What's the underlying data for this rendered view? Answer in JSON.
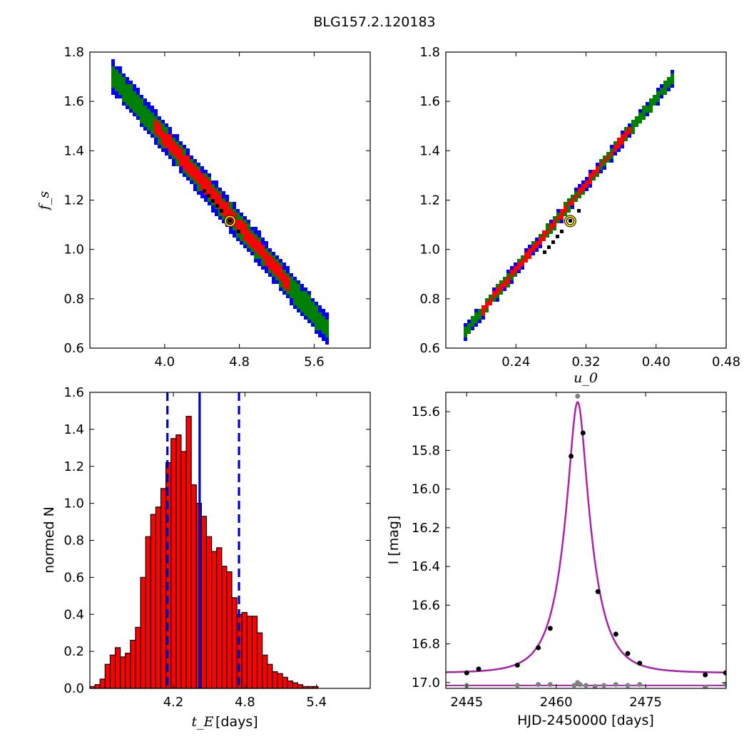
{
  "title": "BLG157.2.120183",
  "colors": {
    "sigma3": "#0000ff",
    "sigma2": "#008000",
    "sigma1": "#ff0000",
    "best_cells": "#000000",
    "marker_edge": "#ffd700",
    "hist_fill": "#ff0000",
    "hist_lines": "#0000cc",
    "model_curve": "#aa22aa",
    "data_black": "#000000",
    "data_grey": "#808080"
  },
  "chart_data": [
    {
      "id": "tE-fs",
      "type": "heatmap",
      "xlabel": "",
      "ylabel": "f_s",
      "xlim": [
        3.2,
        6.2
      ],
      "ylim": [
        0.6,
        1.8
      ],
      "xticks": [
        "4.0",
        "4.8",
        "5.6"
      ],
      "yticks": [
        "0.6",
        "0.8",
        "1.0",
        "1.2",
        "1.4",
        "1.6",
        "1.8"
      ],
      "confidence_band": {
        "x_start": 3.45,
        "y_start": 1.7,
        "x_end": 5.75,
        "y_end": 0.67,
        "levels": [
          {
            "name": "3-sigma",
            "color": "#0000ff",
            "half_width_fs": 0.065
          },
          {
            "name": "2-sigma",
            "color": "#008000",
            "half_width_fs": 0.045
          },
          {
            "name": "1-sigma",
            "color": "#ff0000",
            "half_width_fs": 0.03,
            "x_from": 3.9,
            "x_to": 5.35
          }
        ]
      },
      "best_fit": {
        "x": 4.7,
        "y": 1.115
      }
    },
    {
      "id": "u0-fs",
      "type": "heatmap",
      "xlabel": "u_0",
      "ylabel": "",
      "xlim": [
        0.16,
        0.48
      ],
      "ylim": [
        0.6,
        1.8
      ],
      "xticks": [
        "0.24",
        "0.32",
        "0.40",
        "0.48"
      ],
      "yticks": [
        "0.6",
        "0.8",
        "1.0",
        "1.2",
        "1.4",
        "1.6",
        "1.8"
      ],
      "confidence_band": {
        "x_start": 0.183,
        "y_start": 0.67,
        "x_end": 0.42,
        "y_end": 1.7,
        "levels": [
          {
            "name": "3-sigma",
            "color": "#0000ff",
            "half_width_fs": 0.03
          },
          {
            "name": "2-sigma",
            "color": "#008000",
            "half_width_fs": 0.022
          },
          {
            "name": "1-sigma",
            "color": "#ff0000",
            "half_width_fs": 0.014,
            "x_from": 0.2,
            "x_to": 0.37
          }
        ]
      },
      "best_fit": {
        "x": 0.302,
        "y": 1.115
      }
    },
    {
      "id": "tE-hist",
      "type": "bar",
      "xlabel": "t_E",
      "xlabel_suffix": "[days]",
      "ylabel": "normed N",
      "xlim": [
        3.5,
        5.85
      ],
      "ylim": [
        0.0,
        1.6
      ],
      "xticks": [
        "4.2",
        "4.8",
        "5.4"
      ],
      "yticks": [
        "0.0",
        "0.2",
        "0.4",
        "0.6",
        "0.8",
        "1.0",
        "1.2",
        "1.4",
        "1.6"
      ],
      "bin_start": 3.5,
      "bin_width": 0.0425,
      "values": [
        0.01,
        0.02,
        0.05,
        0.13,
        0.18,
        0.22,
        0.17,
        0.19,
        0.26,
        0.33,
        0.6,
        0.82,
        0.94,
        0.98,
        1.08,
        1.22,
        1.35,
        1.37,
        1.28,
        1.47,
        1.1,
        1.0,
        0.93,
        0.82,
        0.74,
        0.76,
        0.66,
        0.63,
        0.49,
        0.4,
        0.41,
        0.39,
        0.39,
        0.3,
        0.18,
        0.13,
        0.09,
        0.08,
        0.06,
        0.04,
        0.03,
        0.02,
        0.01,
        0.01,
        0.01
      ],
      "vlines": [
        {
          "x": 4.15,
          "style": "dashed"
        },
        {
          "x": 4.42,
          "style": "solid"
        },
        {
          "x": 4.75,
          "style": "dashed"
        }
      ]
    },
    {
      "id": "lightcurve",
      "type": "scatter",
      "xlabel": "HJD-2450000 [days]",
      "ylabel": "I [mag]",
      "xlim": [
        2441.5,
        2488.5
      ],
      "ylim": [
        17.03,
        15.5
      ],
      "y_inverted": true,
      "xticks": [
        "2445",
        "2460",
        "2475"
      ],
      "yticks": [
        "15.6",
        "15.8",
        "16.0",
        "16.2",
        "16.4",
        "16.6",
        "16.8",
        "17.0"
      ],
      "model": {
        "t0": 2463.6,
        "tE": 4.5,
        "u0": 0.302,
        "base_mag": 16.95
      },
      "points": [
        [
          2445.0,
          16.95
        ],
        [
          2447.0,
          16.93
        ],
        [
          2453.5,
          16.91
        ],
        [
          2457.0,
          16.82
        ],
        [
          2459.0,
          16.72
        ],
        [
          2462.5,
          15.83
        ],
        [
          2464.5,
          15.71
        ],
        [
          2467.0,
          16.53
        ],
        [
          2470.0,
          16.75
        ],
        [
          2472.0,
          16.85
        ],
        [
          2474.0,
          16.9
        ],
        [
          2485.0,
          16.96
        ],
        [
          2488.4,
          16.95
        ]
      ],
      "baseline_line_mag": 17.015,
      "residual_points": [
        [
          2445.0,
          17.015
        ],
        [
          2453.5,
          17.015
        ],
        [
          2457.0,
          17.01
        ],
        [
          2459.0,
          17.01
        ],
        [
          2463.0,
          17.015
        ],
        [
          2463.6,
          17.0
        ],
        [
          2464.0,
          17.01
        ],
        [
          2465.0,
          17.015
        ],
        [
          2466.5,
          17.02
        ],
        [
          2468.0,
          17.015
        ],
        [
          2470.0,
          17.01
        ],
        [
          2472.0,
          17.015
        ],
        [
          2474.0,
          17.01
        ],
        [
          2485.0,
          17.025
        ],
        [
          2488.4,
          17.01
        ]
      ]
    }
  ]
}
